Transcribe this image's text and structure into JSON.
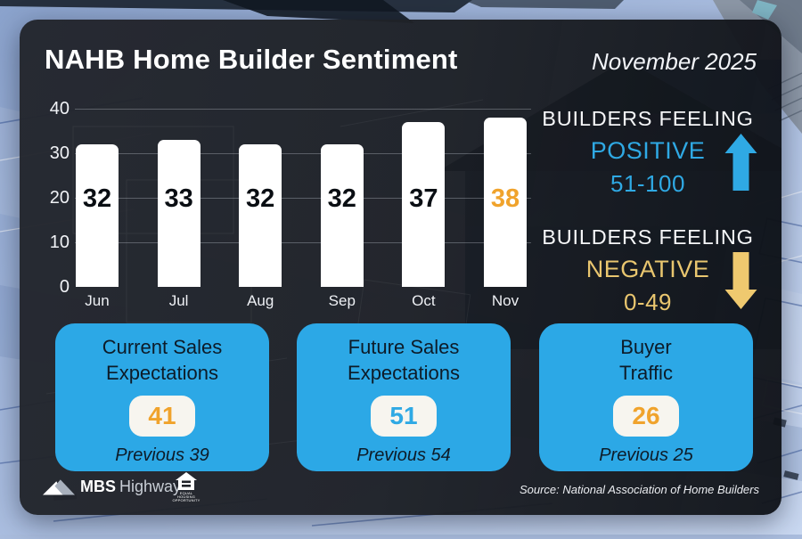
{
  "header": {
    "title": "NAHB Home Builder Sentiment",
    "date": "November 2025"
  },
  "chart_data": {
    "type": "bar",
    "categories": [
      "Jun",
      "Jul",
      "Aug",
      "Sep",
      "Oct",
      "Nov"
    ],
    "values": [
      32,
      33,
      32,
      32,
      37,
      38
    ],
    "highlight_index": 5,
    "title": "NAHB Home Builder Sentiment",
    "xlabel": "",
    "ylabel": "",
    "ylim": [
      0,
      40
    ],
    "yticks": [
      40,
      30,
      20,
      10,
      0
    ],
    "grid": true,
    "legend_position": "none",
    "bar_color": "#ffffff",
    "value_label_color": "#0a0e13",
    "highlight_value_color": "#f0a32c"
  },
  "legend": {
    "positive": {
      "line1": "BUILDERS FEELING",
      "line2": "POSITIVE",
      "range": "51-100",
      "color": "#2fa9e4",
      "arrow_icon": "up-arrow-icon"
    },
    "negative": {
      "line1": "BUILDERS FEELING",
      "line2": "NEGATIVE",
      "range": "0-49",
      "color": "#e9c66f",
      "arrow_icon": "down-arrow-icon"
    }
  },
  "cards": [
    {
      "title_lines": [
        "Current Sales",
        "Expectations"
      ],
      "value": 41,
      "value_color": "#f0a32c",
      "previous": "Previous 39"
    },
    {
      "title_lines": [
        "Future Sales",
        "Expectations"
      ],
      "value": 51,
      "value_color": "#2fa9e4",
      "previous": "Previous 54"
    },
    {
      "title_lines": [
        "Buyer",
        "Traffic"
      ],
      "value": 26,
      "value_color": "#f0a32c",
      "previous": "Previous 25"
    }
  ],
  "footer": {
    "brand_bold": "MBS",
    "brand_regular": "Highway",
    "brand_reg_mark": "®",
    "eho_label": "EQUAL HOUSING OPPORTUNITY",
    "source": "Source: National Association of Home Builders"
  },
  "colors": {
    "accent_blue": "#2fa9e4",
    "accent_orange": "#f0a32c",
    "accent_gold": "#efc96f",
    "card_blue": "#2ca8e6",
    "panel_dark": "#1f2228",
    "pill_white": "#f7f5ef"
  }
}
